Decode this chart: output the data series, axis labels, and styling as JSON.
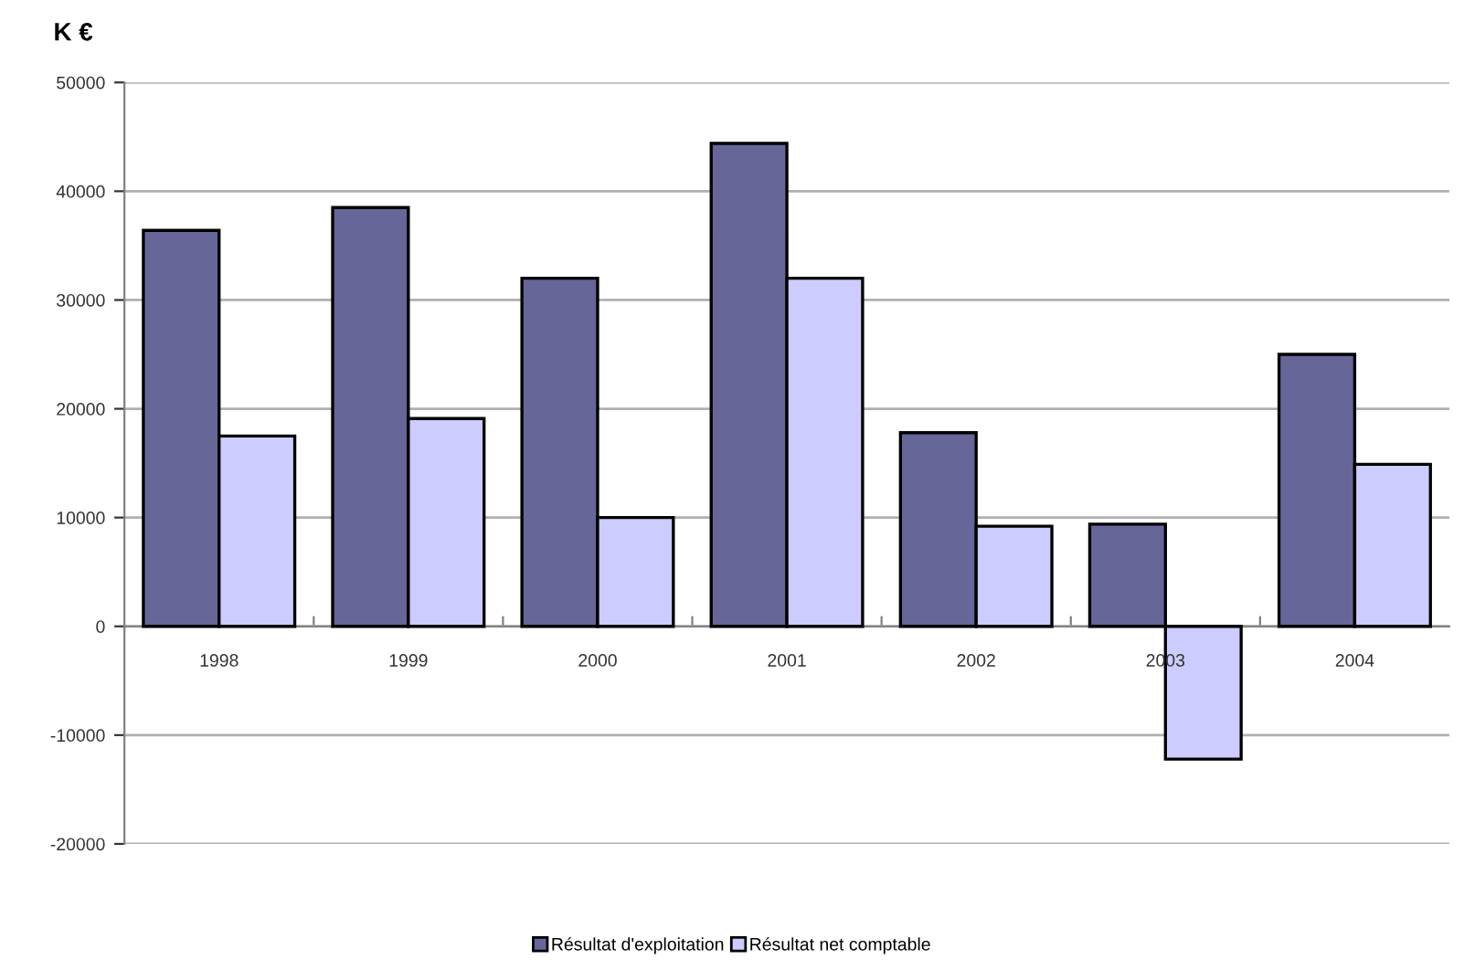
{
  "chart_data": {
    "type": "bar",
    "ylabel": "K €",
    "categories": [
      "1998",
      "1999",
      "2000",
      "2001",
      "2002",
      "2003",
      "2004"
    ],
    "series": [
      {
        "name": "Résultat d'exploitation",
        "color": "#666699",
        "values": [
          36400,
          38500,
          32000,
          44400,
          17800,
          9400,
          25000
        ]
      },
      {
        "name": "Résultat net comptable",
        "color": "#ccccff",
        "values": [
          17500,
          19100,
          10000,
          32000,
          9200,
          -12200,
          14900
        ]
      }
    ],
    "ylim": [
      -20000,
      50000
    ],
    "yticks": [
      -20000,
      -10000,
      0,
      10000,
      20000,
      30000,
      40000,
      50000
    ],
    "grid": "y",
    "legend": "bottom"
  }
}
